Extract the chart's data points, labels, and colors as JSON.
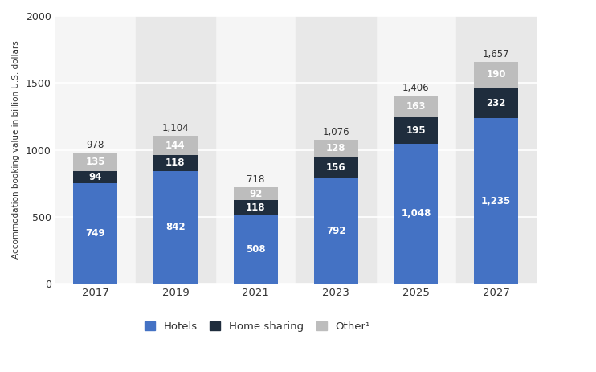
{
  "years": [
    "2017",
    "2019",
    "2021",
    "2023",
    "2025",
    "2027"
  ],
  "hotels": [
    749,
    842,
    508,
    792,
    1048,
    1235
  ],
  "home_sharing": [
    94,
    118,
    118,
    156,
    195,
    232
  ],
  "other": [
    135,
    144,
    92,
    128,
    163,
    190
  ],
  "totals": [
    978,
    1104,
    718,
    1076,
    1406,
    1657
  ],
  "hotels_color": "#4472c4",
  "home_sharing_color": "#1f2d3d",
  "other_color": "#bdbdbd",
  "bar_width": 0.55,
  "ylabel": "Accommodation booking value in billion U.S. dollars",
  "yticks": [
    0,
    500,
    1000,
    1500,
    2000
  ],
  "background_color": "#ffffff",
  "plot_bg_color": "#f5f5f5",
  "grid_color": "#ffffff",
  "font_color": "#333333",
  "legend_labels": [
    "Hotels",
    "Home sharing",
    "Other¹"
  ],
  "label_fontsize": 8.5,
  "total_fontsize": 8.5
}
